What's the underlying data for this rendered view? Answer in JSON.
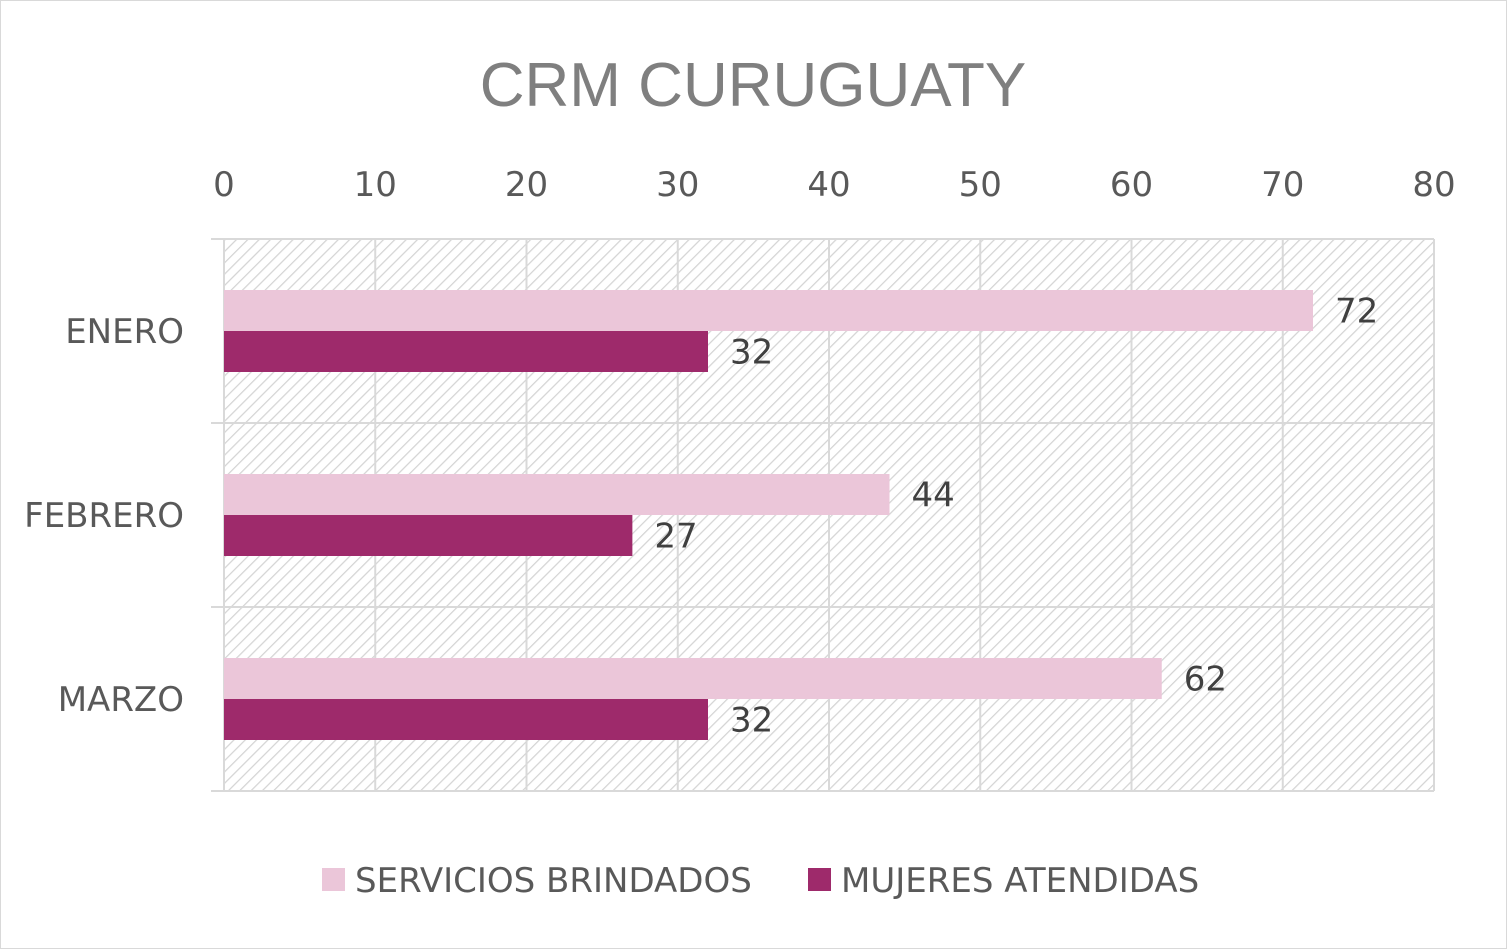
{
  "chart_data": {
    "type": "bar",
    "orientation": "horizontal",
    "title": "CRM CURUGUATY",
    "categories": [
      "ENERO",
      "FEBRERO",
      "MARZO"
    ],
    "series": [
      {
        "name": "SERVICIOS BRINDADOS",
        "values": [
          72,
          44,
          62
        ],
        "color": "#ebc6d9"
      },
      {
        "name": "MUJERES ATENDIDAS",
        "values": [
          32,
          27,
          32
        ],
        "color": "#9e2a6b"
      }
    ],
    "xlim": [
      0,
      80
    ],
    "x_ticks": [
      0,
      10,
      20,
      30,
      40,
      50,
      60,
      70,
      80
    ],
    "x_axis_position": "top",
    "grid": true,
    "plot_background": "hatched",
    "data_labels": true,
    "legend_position": "bottom"
  }
}
